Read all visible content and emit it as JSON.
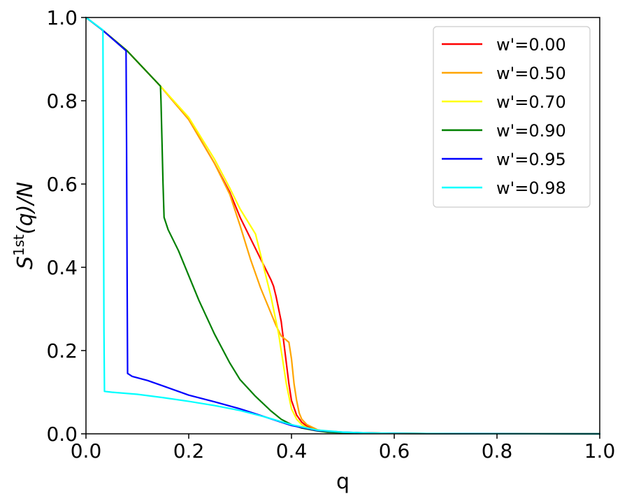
{
  "chart_data": {
    "type": "line",
    "title": "",
    "xlabel": "q",
    "ylabel_base": "S",
    "ylabel_sup": "1st",
    "ylabel_rest": "(q)/N",
    "xlim": [
      0.0,
      1.0
    ],
    "ylim": [
      0.0,
      1.0
    ],
    "xticks": [
      "0.0",
      "0.2",
      "0.4",
      "0.6",
      "0.8",
      "1.0"
    ],
    "yticks": [
      "0.0",
      "0.2",
      "0.4",
      "0.6",
      "0.8",
      "1.0"
    ],
    "xtick_values": [
      0.0,
      0.2,
      0.4,
      0.6,
      0.8,
      1.0
    ],
    "ytick_values": [
      0.0,
      0.2,
      0.4,
      0.6,
      0.8,
      1.0
    ],
    "grid": false,
    "legend_position": "top-right",
    "series": [
      {
        "name": "w'=0.00",
        "color": "#ff0000",
        "x": [
          0,
          0.03,
          0.08,
          0.145,
          0.2,
          0.25,
          0.28,
          0.3,
          0.32,
          0.34,
          0.36,
          0.365,
          0.37,
          0.375,
          0.38,
          0.385,
          0.39,
          0.395,
          0.4,
          0.41,
          0.42,
          0.43,
          0.45,
          0.47,
          0.5,
          0.55,
          0.6,
          0.7,
          0.8,
          1.0
        ],
        "y": [
          1.0,
          0.972,
          0.92,
          0.835,
          0.755,
          0.65,
          0.58,
          0.52,
          0.47,
          0.42,
          0.37,
          0.355,
          0.33,
          0.3,
          0.27,
          0.22,
          0.17,
          0.12,
          0.08,
          0.045,
          0.028,
          0.018,
          0.009,
          0.005,
          0.003,
          0.002,
          0.001,
          0.0005,
          0.0002,
          0.0
        ]
      },
      {
        "name": "w'=0.50",
        "color": "#ffa500",
        "x": [
          0,
          0.03,
          0.08,
          0.145,
          0.2,
          0.25,
          0.28,
          0.3,
          0.32,
          0.34,
          0.36,
          0.37,
          0.38,
          0.39,
          0.395,
          0.4,
          0.405,
          0.41,
          0.415,
          0.42,
          0.43,
          0.45,
          0.47,
          0.5,
          0.55,
          0.6,
          0.7,
          0.8,
          1.0
        ],
        "y": [
          1.0,
          0.972,
          0.92,
          0.835,
          0.755,
          0.65,
          0.575,
          0.5,
          0.42,
          0.35,
          0.29,
          0.26,
          0.235,
          0.225,
          0.22,
          0.18,
          0.12,
          0.08,
          0.05,
          0.035,
          0.022,
          0.01,
          0.005,
          0.003,
          0.002,
          0.001,
          0.0005,
          0.0002,
          0.0
        ]
      },
      {
        "name": "w'=0.70",
        "color": "#ffff00",
        "x": [
          0,
          0.03,
          0.08,
          0.145,
          0.2,
          0.25,
          0.28,
          0.3,
          0.32,
          0.33,
          0.34,
          0.35,
          0.36,
          0.37,
          0.375,
          0.38,
          0.385,
          0.39,
          0.395,
          0.4,
          0.41,
          0.42,
          0.43,
          0.45,
          0.47,
          0.5,
          0.55,
          0.6,
          0.7,
          0.8,
          1.0
        ],
        "y": [
          1.0,
          0.972,
          0.92,
          0.835,
          0.76,
          0.66,
          0.59,
          0.54,
          0.5,
          0.48,
          0.43,
          0.38,
          0.33,
          0.27,
          0.24,
          0.2,
          0.16,
          0.12,
          0.09,
          0.06,
          0.035,
          0.022,
          0.015,
          0.008,
          0.005,
          0.003,
          0.002,
          0.001,
          0.0005,
          0.0002,
          0.0
        ]
      },
      {
        "name": "w'=0.90",
        "color": "#008000",
        "x": [
          0,
          0.03,
          0.08,
          0.145,
          0.146,
          0.148,
          0.15,
          0.152,
          0.16,
          0.18,
          0.2,
          0.22,
          0.25,
          0.28,
          0.3,
          0.33,
          0.36,
          0.38,
          0.4,
          0.42,
          0.45,
          0.47,
          0.5,
          0.55,
          0.6,
          0.7,
          0.8,
          1.0
        ],
        "y": [
          1.0,
          0.972,
          0.92,
          0.835,
          0.8,
          0.7,
          0.6,
          0.52,
          0.49,
          0.44,
          0.38,
          0.32,
          0.24,
          0.17,
          0.13,
          0.09,
          0.055,
          0.035,
          0.022,
          0.014,
          0.007,
          0.004,
          0.003,
          0.002,
          0.001,
          0.0005,
          0.0002,
          0.0
        ]
      },
      {
        "name": "w'=0.95",
        "color": "#0000ff",
        "x": [
          0,
          0.03,
          0.078,
          0.079,
          0.08,
          0.081,
          0.09,
          0.12,
          0.15,
          0.2,
          0.25,
          0.3,
          0.35,
          0.4,
          0.45,
          0.5,
          0.55,
          0.6,
          0.7,
          0.8,
          1.0
        ],
        "y": [
          1.0,
          0.972,
          0.92,
          0.7,
          0.4,
          0.145,
          0.138,
          0.128,
          0.115,
          0.093,
          0.077,
          0.06,
          0.04,
          0.02,
          0.008,
          0.004,
          0.002,
          0.001,
          0.0005,
          0.0002,
          0.0
        ]
      },
      {
        "name": "w'=0.98",
        "color": "#00ffff",
        "x": [
          0,
          0.033,
          0.034,
          0.035,
          0.036,
          0.05,
          0.1,
          0.15,
          0.2,
          0.25,
          0.3,
          0.35,
          0.4,
          0.45,
          0.5,
          0.55,
          0.6,
          0.7,
          0.8,
          1.0
        ],
        "y": [
          1.0,
          0.97,
          0.6,
          0.25,
          0.102,
          0.1,
          0.095,
          0.087,
          0.078,
          0.068,
          0.056,
          0.04,
          0.022,
          0.009,
          0.004,
          0.002,
          0.001,
          0.0005,
          0.0002,
          0.0
        ]
      }
    ]
  }
}
